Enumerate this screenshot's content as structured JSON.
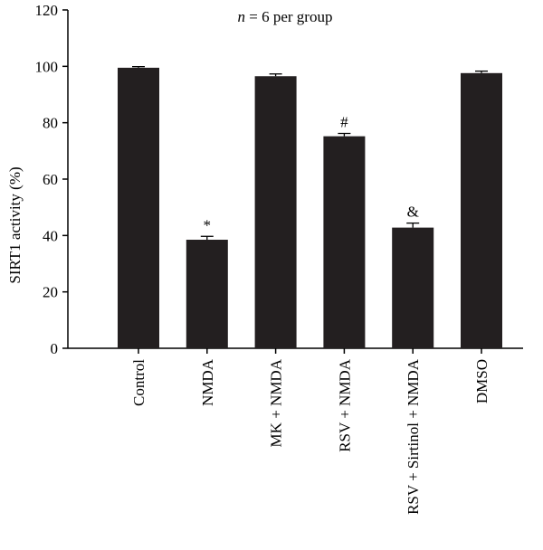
{
  "chart_data": {
    "type": "bar",
    "categories": [
      "Control",
      "NMDA",
      "MK + NMDA",
      "RSV + NMDA",
      "RSV + Sirtinol + NMDA",
      "DMSO"
    ],
    "values": [
      99.5,
      38.5,
      96.5,
      75.2,
      42.8,
      97.6
    ],
    "errors": [
      0.4,
      1.2,
      0.8,
      1.0,
      1.6,
      0.7
    ],
    "significance": [
      "",
      "*",
      "",
      "#",
      "&",
      ""
    ],
    "ylabel": "SIRT1 activity (%)",
    "xlabel": "",
    "ylim": [
      0,
      120
    ],
    "yticks": [
      0,
      20,
      40,
      60,
      80,
      100,
      120
    ],
    "annotation": {
      "prefix": "n",
      "text": " = 6 per group"
    },
    "grid": false,
    "bar_color": "#231f20"
  }
}
